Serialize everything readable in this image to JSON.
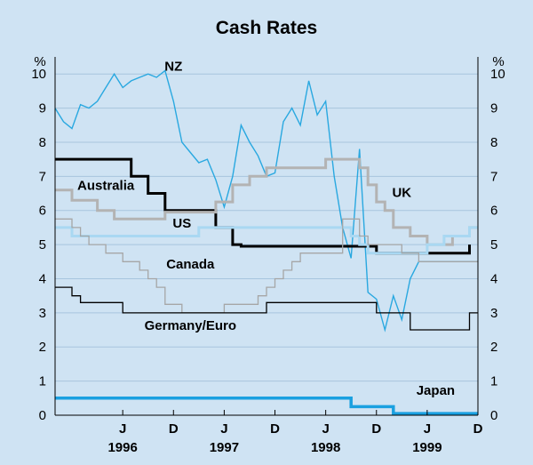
{
  "chart_data": {
    "type": "line",
    "title": "Cash Rates",
    "ylabel_left": "%",
    "ylabel_right": "%",
    "ylim": [
      0,
      10.5
    ],
    "yticks": [
      "0",
      "1",
      "2",
      "3",
      "4",
      "5",
      "6",
      "7",
      "8",
      "9",
      "10"
    ],
    "xlim": [
      "1995-10",
      "1999-12"
    ],
    "xticks": [
      {
        "label": "J",
        "date": "1996-06"
      },
      {
        "label": "D",
        "date": "1996-12"
      },
      {
        "label": "J",
        "date": "1997-06"
      },
      {
        "label": "D",
        "date": "1997-12"
      },
      {
        "label": "J",
        "date": "1998-06"
      },
      {
        "label": "D",
        "date": "1998-12"
      },
      {
        "label": "J",
        "date": "1999-06"
      },
      {
        "label": "D",
        "date": "1999-12"
      }
    ],
    "years": [
      {
        "label": "1996",
        "date": "1996-06"
      },
      {
        "label": "1997",
        "date": "1997-06"
      },
      {
        "label": "1998",
        "date": "1998-06"
      },
      {
        "label": "1999",
        "date": "1999-06"
      }
    ],
    "grid": "horizontal",
    "legend": "inline labels",
    "colors": {
      "background": "#cfe3f3",
      "gridline": "#a8c5de",
      "nz": "#29a8e0",
      "japan": "#1aa0e0",
      "us": "#a9d8f2",
      "uk": "#b3b3b3",
      "canada": "#a6a6a6",
      "australia": "#000000",
      "germany": "#000000"
    },
    "series": [
      {
        "name": "NZ",
        "label_at": [
          "1996-12",
          10.1
        ],
        "color": "#29a8e0",
        "width": 1.4,
        "step": false,
        "points": [
          [
            "1995-10",
            9.0
          ],
          [
            "1995-11",
            8.6
          ],
          [
            "1995-12",
            8.4
          ],
          [
            "1996-01",
            9.1
          ],
          [
            "1996-02",
            9.0
          ],
          [
            "1996-03",
            9.2
          ],
          [
            "1996-04",
            9.6
          ],
          [
            "1996-05",
            10.0
          ],
          [
            "1996-06",
            9.6
          ],
          [
            "1996-07",
            9.8
          ],
          [
            "1996-08",
            9.9
          ],
          [
            "1996-09",
            10.0
          ],
          [
            "1996-10",
            9.9
          ],
          [
            "1996-11",
            10.1
          ],
          [
            "1996-12",
            9.2
          ],
          [
            "1997-01",
            8.0
          ],
          [
            "1997-02",
            7.7
          ],
          [
            "1997-03",
            7.4
          ],
          [
            "1997-04",
            7.5
          ],
          [
            "1997-05",
            6.9
          ],
          [
            "1997-06",
            6.1
          ],
          [
            "1997-07",
            7.0
          ],
          [
            "1997-08",
            8.5
          ],
          [
            "1997-09",
            8.0
          ],
          [
            "1997-10",
            7.6
          ],
          [
            "1997-11",
            7.0
          ],
          [
            "1997-12",
            7.1
          ],
          [
            "1998-01",
            8.6
          ],
          [
            "1998-02",
            9.0
          ],
          [
            "1998-03",
            8.5
          ],
          [
            "1998-04",
            9.8
          ],
          [
            "1998-05",
            8.8
          ],
          [
            "1998-06",
            9.2
          ],
          [
            "1998-07",
            7.0
          ],
          [
            "1998-08",
            5.5
          ],
          [
            "1998-09",
            4.6
          ],
          [
            "1998-10",
            7.8
          ],
          [
            "1998-11",
            3.6
          ],
          [
            "1998-12",
            3.4
          ],
          [
            "1999-01",
            2.5
          ],
          [
            "1999-02",
            3.5
          ],
          [
            "1999-03",
            2.8
          ],
          [
            "1999-04",
            4.0
          ],
          [
            "1999-05",
            4.5
          ],
          [
            "1999-12",
            4.5
          ]
        ]
      },
      {
        "name": "Australia",
        "label_at": [
          "1996-04",
          6.6
        ],
        "color": "#000000",
        "width": 3,
        "step": true,
        "points": [
          [
            "1995-10",
            7.5
          ],
          [
            "1996-07",
            7.0
          ],
          [
            "1996-09",
            6.5
          ],
          [
            "1996-11",
            6.0
          ],
          [
            "1997-05",
            5.5
          ],
          [
            "1997-07",
            5.0
          ],
          [
            "1997-08",
            4.95
          ],
          [
            "1998-12",
            4.75
          ],
          [
            "1999-11",
            5.0
          ]
        ]
      },
      {
        "name": "UK",
        "label_at": [
          "1999-03",
          6.4
        ],
        "color": "#b3b3b3",
        "width": 3,
        "step": true,
        "points": [
          [
            "1995-10",
            6.6
          ],
          [
            "1995-12",
            6.3
          ],
          [
            "1996-03",
            6.0
          ],
          [
            "1996-05",
            5.75
          ],
          [
            "1996-11",
            5.95
          ],
          [
            "1997-05",
            6.25
          ],
          [
            "1997-07",
            6.75
          ],
          [
            "1997-09",
            7.0
          ],
          [
            "1997-11",
            7.25
          ],
          [
            "1998-06",
            7.5
          ],
          [
            "1998-10",
            7.25
          ],
          [
            "1998-11",
            6.75
          ],
          [
            "1998-12",
            6.25
          ],
          [
            "1999-01",
            6.0
          ],
          [
            "1999-02",
            5.5
          ],
          [
            "1999-04",
            5.25
          ],
          [
            "1999-06",
            5.0
          ],
          [
            "1999-09",
            5.25
          ],
          [
            "1999-11",
            5.5
          ],
          [
            "1999-12",
            5.5
          ]
        ]
      },
      {
        "name": "US",
        "label_at": [
          "1997-01",
          5.5
        ],
        "color": "#a9d8f2",
        "width": 3,
        "step": true,
        "points": [
          [
            "1995-10",
            5.5
          ],
          [
            "1995-12",
            5.25
          ],
          [
            "1997-03",
            5.5
          ],
          [
            "1998-09",
            5.25
          ],
          [
            "1998-10",
            5.0
          ],
          [
            "1998-11",
            4.75
          ],
          [
            "1999-06",
            5.0
          ],
          [
            "1999-08",
            5.25
          ],
          [
            "1999-11",
            5.5
          ],
          [
            "1999-12",
            5.5
          ]
        ]
      },
      {
        "name": "Canada",
        "label_at": [
          "1997-02",
          4.3
        ],
        "color": "#a6a6a6",
        "width": 1.3,
        "step": true,
        "points": [
          [
            "1995-10",
            5.75
          ],
          [
            "1995-12",
            5.5
          ],
          [
            "1996-01",
            5.25
          ],
          [
            "1996-02",
            5.0
          ],
          [
            "1996-04",
            4.75
          ],
          [
            "1996-06",
            4.5
          ],
          [
            "1996-08",
            4.25
          ],
          [
            "1996-09",
            4.0
          ],
          [
            "1996-10",
            3.75
          ],
          [
            "1996-11",
            3.25
          ],
          [
            "1997-01",
            3.0
          ],
          [
            "1997-06",
            3.25
          ],
          [
            "1997-10",
            3.5
          ],
          [
            "1997-11",
            3.75
          ],
          [
            "1997-12",
            4.0
          ],
          [
            "1998-01",
            4.25
          ],
          [
            "1998-02",
            4.5
          ],
          [
            "1998-03",
            4.75
          ],
          [
            "1998-08",
            5.75
          ],
          [
            "1998-10",
            5.25
          ],
          [
            "1998-11",
            5.0
          ],
          [
            "1999-03",
            4.75
          ],
          [
            "1999-05",
            4.5
          ],
          [
            "1999-12",
            4.5
          ]
        ]
      },
      {
        "name": "Germany/Euro",
        "label_at": [
          "1997-02",
          2.5
        ],
        "color": "#000000",
        "width": 1.3,
        "step": true,
        "points": [
          [
            "1995-10",
            3.75
          ],
          [
            "1995-12",
            3.5
          ],
          [
            "1996-01",
            3.3
          ],
          [
            "1996-06",
            3.0
          ],
          [
            "1997-11",
            3.3
          ],
          [
            "1998-12",
            3.0
          ],
          [
            "1999-04",
            2.5
          ],
          [
            "1999-11",
            3.0
          ],
          [
            "1999-12",
            3.0
          ]
        ]
      },
      {
        "name": "Japan",
        "label_at": [
          "1999-07",
          0.6
        ],
        "color": "#1aa0e0",
        "width": 3.5,
        "step": true,
        "points": [
          [
            "1995-10",
            0.5
          ],
          [
            "1998-09",
            0.25
          ],
          [
            "1999-02",
            0.05
          ],
          [
            "1999-12",
            0.05
          ]
        ]
      }
    ]
  }
}
